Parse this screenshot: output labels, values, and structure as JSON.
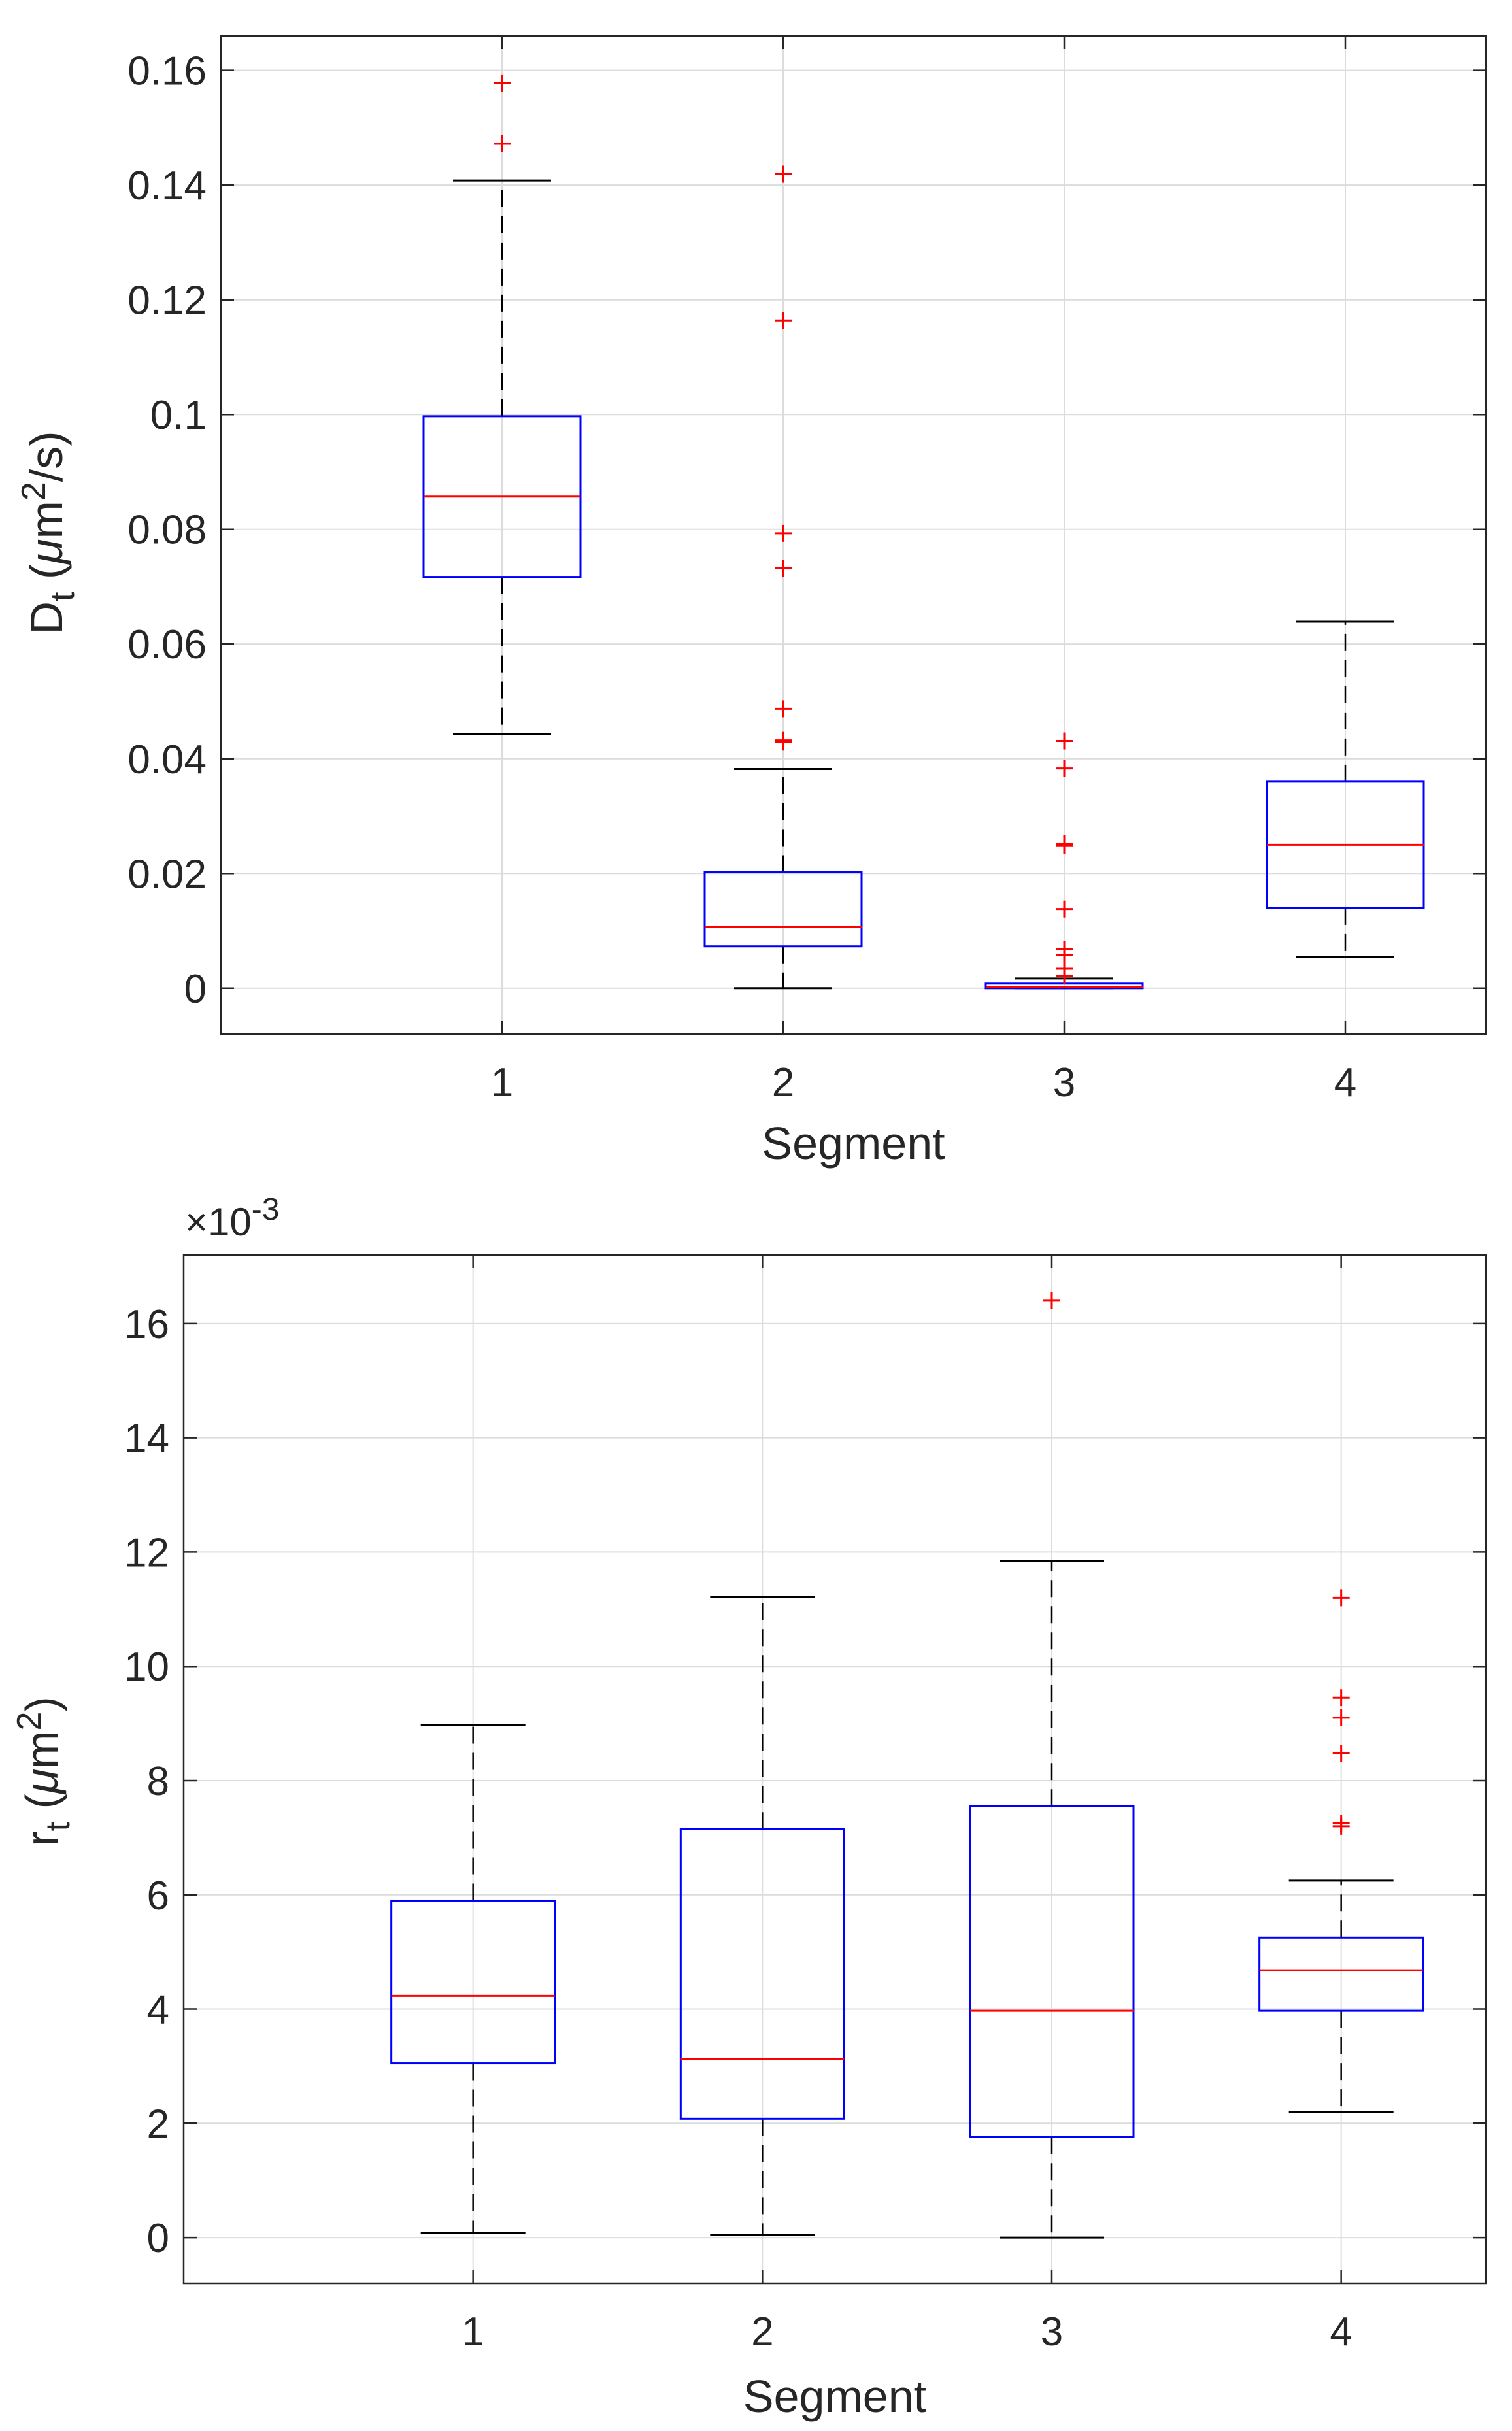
{
  "chart_data": [
    {
      "type": "boxplot",
      "title": "",
      "xlabel": "Segment",
      "ylabel": {
        "base": "D",
        "sub": "t",
        "unit_open": " (",
        "mu": "μ",
        "unit_mid": "m",
        "sup": "2",
        "unit_close": "/s)"
      },
      "ylim": [
        -0.008,
        0.166
      ],
      "xlim": [
        0,
        4.5
      ],
      "exponent": null,
      "colors": {
        "box": "#0000ff",
        "median": "#ff0000",
        "whisker": "#000000",
        "outlier": "#ff0000",
        "grid": "#dcdcdc"
      },
      "x_ticks": [
        "1",
        "2",
        "3",
        "4"
      ],
      "y_ticks": [
        {
          "value": 0,
          "label": "0"
        },
        {
          "value": 0.02,
          "label": "0.02"
        },
        {
          "value": 0.04,
          "label": "0.04"
        },
        {
          "value": 0.06,
          "label": "0.06"
        },
        {
          "value": 0.08,
          "label": "0.08"
        },
        {
          "value": 0.1,
          "label": "0.1"
        },
        {
          "value": 0.12,
          "label": "0.12"
        },
        {
          "value": 0.14,
          "label": "0.14"
        },
        {
          "value": 0.16,
          "label": "0.16"
        }
      ],
      "boxes": [
        {
          "category": "1",
          "whisker_low": 0.0443,
          "q1": 0.0717,
          "median": 0.0857,
          "q3": 0.0997,
          "whisker_high": 0.1408,
          "outliers": [
            0.1472,
            0.1578
          ]
        },
        {
          "category": "2",
          "whisker_low": 0.0,
          "q1": 0.0073,
          "median": 0.0107,
          "q3": 0.0202,
          "whisker_high": 0.0382,
          "outliers": [
            0.0429,
            0.0432,
            0.0487,
            0.0732,
            0.0793,
            0.1164,
            0.1419
          ]
        },
        {
          "category": "3",
          "whisker_low": 0.0,
          "q1": 0.0,
          "median": 0.0002,
          "q3": 0.0008,
          "whisker_high": 0.0017,
          "outliers": [
            0.0022,
            0.0034,
            0.0058,
            0.0068,
            0.0138,
            0.0249,
            0.0252,
            0.0383,
            0.0431
          ]
        },
        {
          "category": "4",
          "whisker_low": 0.0055,
          "q1": 0.014,
          "median": 0.025,
          "q3": 0.036,
          "whisker_high": 0.0639,
          "outliers": []
        }
      ]
    },
    {
      "type": "boxplot",
      "title": "",
      "xlabel": "Segment",
      "ylabel": {
        "base": "r",
        "sub": "t",
        "unit_open": " (",
        "mu": "μ",
        "unit_mid": "m",
        "sup": "2",
        "unit_close": ")"
      },
      "ylim": [
        -0.8,
        17.2
      ],
      "xlim": [
        0,
        4.5
      ],
      "exponent": {
        "prefix": "×10",
        "power": "-3"
      },
      "colors": {
        "box": "#0000ff",
        "median": "#ff0000",
        "whisker": "#000000",
        "outlier": "#ff0000",
        "grid": "#dcdcdc"
      },
      "x_ticks": [
        "1",
        "2",
        "3",
        "4"
      ],
      "y_ticks": [
        {
          "value": 0,
          "label": "0"
        },
        {
          "value": 2,
          "label": "2"
        },
        {
          "value": 4,
          "label": "4"
        },
        {
          "value": 6,
          "label": "6"
        },
        {
          "value": 8,
          "label": "8"
        },
        {
          "value": 10,
          "label": "10"
        },
        {
          "value": 12,
          "label": "12"
        },
        {
          "value": 14,
          "label": "14"
        },
        {
          "value": 16,
          "label": "16"
        }
      ],
      "boxes": [
        {
          "category": "1",
          "whisker_low": 0.08,
          "q1": 3.05,
          "median": 4.23,
          "q3": 5.9,
          "whisker_high": 8.97,
          "outliers": []
        },
        {
          "category": "2",
          "whisker_low": 0.05,
          "q1": 2.08,
          "median": 3.13,
          "q3": 7.15,
          "whisker_high": 11.22,
          "outliers": []
        },
        {
          "category": "3",
          "whisker_low": 0.0,
          "q1": 1.76,
          "median": 3.97,
          "q3": 7.55,
          "whisker_high": 11.85,
          "outliers": [
            16.4
          ]
        },
        {
          "category": "4",
          "whisker_low": 2.2,
          "q1": 3.97,
          "median": 4.68,
          "q3": 5.25,
          "whisker_high": 6.25,
          "outliers": [
            7.2,
            7.25,
            8.48,
            9.1,
            9.45,
            11.2
          ]
        }
      ]
    }
  ]
}
